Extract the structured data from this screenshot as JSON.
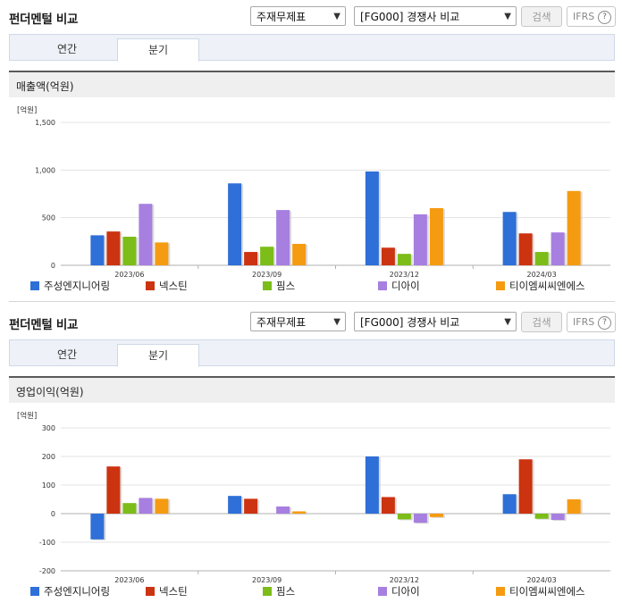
{
  "panels": [
    {
      "title": "펀더멘털 비교",
      "select1": "주재무제표",
      "select2": "[FG000] 경쟁사 비교",
      "search_label": "검색",
      "ifrs_label": "IFRS",
      "tabs": [
        {
          "label": "연간"
        },
        {
          "label": "분기"
        }
      ],
      "active_tab": "분기",
      "section_title": "매출액(억원)"
    },
    {
      "title": "펀더멘털 비교",
      "select1": "주재무제표",
      "select2": "[FG000] 경쟁사 비교",
      "search_label": "검색",
      "ifrs_label": "IFRS",
      "tabs": [
        {
          "label": "연간"
        },
        {
          "label": "분기"
        }
      ],
      "active_tab": "분기",
      "section_title": "영업이익(억원)"
    }
  ],
  "chart_data": [
    {
      "type": "bar",
      "unit_label": "[억원]",
      "categories": [
        "2023/06",
        "2023/09",
        "2023/12",
        "2024/03"
      ],
      "ylim": [
        0,
        1500
      ],
      "yticks": [
        "0",
        "500",
        "1,000",
        "1,500"
      ],
      "ytick_values": [
        0,
        500,
        1000,
        1500
      ],
      "legend_position": "bottom",
      "series": [
        {
          "name": "주성엔지니어링",
          "color": "#2e6fd8",
          "values": [
            315,
            860,
            985,
            560
          ]
        },
        {
          "name": "넥스틴",
          "color": "#cc3311",
          "values": [
            355,
            140,
            185,
            335
          ]
        },
        {
          "name": "핌스",
          "color": "#7cbd19",
          "values": [
            300,
            195,
            120,
            140
          ]
        },
        {
          "name": "디아이",
          "color": "#a77fe0",
          "values": [
            645,
            580,
            535,
            345
          ]
        },
        {
          "name": "티이엠씨씨엔에스",
          "color": "#f59b12",
          "values": [
            240,
            225,
            600,
            780
          ]
        }
      ]
    },
    {
      "type": "bar",
      "unit_label": "[억원]",
      "categories": [
        "2023/06",
        "2023/09",
        "2023/12",
        "2024/03"
      ],
      "ylim": [
        -200,
        300
      ],
      "yticks": [
        "-200",
        "-100",
        "0",
        "100",
        "200",
        "300"
      ],
      "ytick_values": [
        -200,
        -100,
        0,
        100,
        200,
        300
      ],
      "legend_position": "bottom",
      "series": [
        {
          "name": "주성엔지니어링",
          "color": "#2e6fd8",
          "values": [
            -90,
            62,
            200,
            68
          ]
        },
        {
          "name": "넥스틴",
          "color": "#cc3311",
          "values": [
            165,
            52,
            58,
            190
          ]
        },
        {
          "name": "핌스",
          "color": "#7cbd19",
          "values": [
            37,
            0,
            -20,
            -18
          ]
        },
        {
          "name": "디아이",
          "color": "#a77fe0",
          "values": [
            55,
            25,
            -32,
            -22
          ]
        },
        {
          "name": "티이엠씨씨엔에스",
          "color": "#f59b12",
          "values": [
            52,
            8,
            -12,
            50
          ]
        }
      ]
    }
  ]
}
